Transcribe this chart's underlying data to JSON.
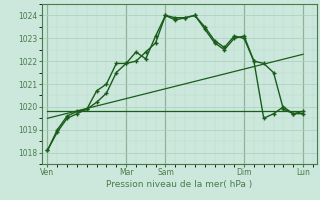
{
  "title": "Pression niveau de la mer( hPa )",
  "bg_color": "#cce8dc",
  "grid_major_color": "#aaccbb",
  "grid_minor_color": "#bbd8cc",
  "line_color": "#1a5c1a",
  "spine_color": "#4a7a4a",
  "ylim": [
    1017.5,
    1024.5
  ],
  "yticks": [
    1018,
    1019,
    1020,
    1021,
    1022,
    1023,
    1024
  ],
  "xlim": [
    -0.3,
    13.7
  ],
  "day_labels": [
    "Ven",
    "Mar",
    "Sam",
    "Dim",
    "Lun"
  ],
  "day_positions": [
    0,
    4,
    6,
    10,
    13
  ],
  "series1_x": [
    0,
    0.5,
    1,
    1.5,
    2,
    2.5,
    3,
    3.5,
    4,
    4.5,
    5,
    5.5,
    6,
    6.5,
    7,
    7.5,
    8,
    8.5,
    9,
    9.5,
    10,
    10.5,
    11,
    11.5,
    12,
    12.5,
    13
  ],
  "series1_y": [
    1018.1,
    1019.0,
    1019.6,
    1019.8,
    1019.9,
    1020.7,
    1021.0,
    1021.9,
    1021.9,
    1022.4,
    1022.1,
    1023.1,
    1024.0,
    1023.8,
    1023.9,
    1024.0,
    1023.5,
    1022.9,
    1022.6,
    1023.1,
    1023.0,
    1022.0,
    1021.9,
    1021.5,
    1019.9,
    1019.7,
    1019.7
  ],
  "series2_x": [
    0,
    0.5,
    1,
    1.5,
    2,
    2.5,
    3,
    3.5,
    4,
    4.5,
    5,
    5.5,
    6,
    6.5,
    7,
    7.5,
    8,
    8.5,
    9,
    9.5,
    10,
    10.5,
    11,
    11.5,
    12,
    12.5,
    13
  ],
  "series2_y": [
    1018.1,
    1018.9,
    1019.5,
    1019.7,
    1019.9,
    1020.2,
    1020.6,
    1021.5,
    1021.9,
    1022.0,
    1022.4,
    1022.8,
    1024.0,
    1023.9,
    1023.9,
    1024.0,
    1023.4,
    1022.8,
    1022.5,
    1023.0,
    1023.1,
    1022.0,
    1019.5,
    1019.7,
    1020.0,
    1019.7,
    1019.8
  ],
  "series3_x": [
    0,
    13
  ],
  "series3_y": [
    1019.8,
    1019.8
  ],
  "series4_x": [
    0,
    13
  ],
  "series4_y": [
    1019.5,
    1022.3
  ]
}
